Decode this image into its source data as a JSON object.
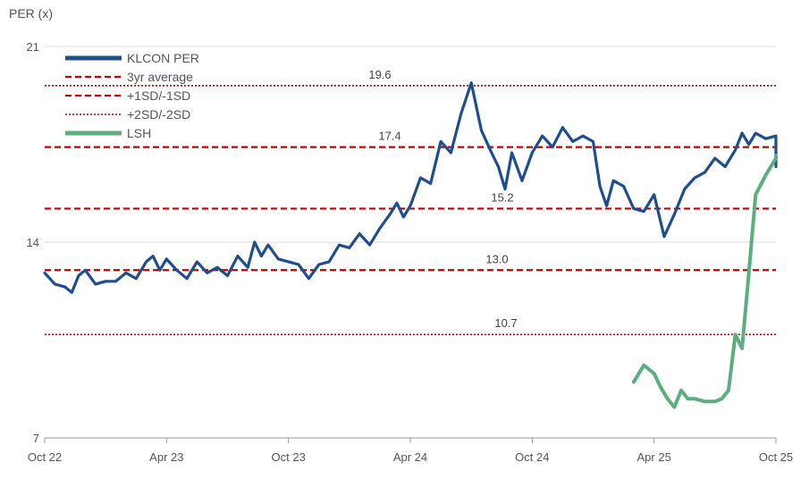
{
  "chart_data": {
    "type": "line",
    "ylabel": "PER (x)",
    "ylim": [
      7,
      21
    ],
    "yticks": [
      7,
      14,
      21
    ],
    "xlim": [
      "2022-10",
      "2025-10"
    ],
    "x_tick_labels": [
      "Oct 22",
      "Apr 23",
      "Oct 23",
      "Apr 24",
      "Oct 24",
      "Apr 25",
      "Oct 25"
    ],
    "grid": "horizontal",
    "legend_position": "top-left",
    "series": [
      {
        "name": "KLCON PER",
        "color": "#1f4e8c",
        "style": "solid",
        "points": [
          [
            "2022-10",
            12.9
          ],
          [
            "2022-10",
            12.5
          ],
          [
            "2022-11",
            12.4
          ],
          [
            "2022-11",
            12.2
          ],
          [
            "2022-11",
            12.8
          ],
          [
            "2022-12",
            13.0
          ],
          [
            "2022-12",
            12.5
          ],
          [
            "2023-01",
            12.6
          ],
          [
            "2023-01",
            12.6
          ],
          [
            "2023-02",
            12.9
          ],
          [
            "2023-02",
            12.7
          ],
          [
            "2023-03",
            13.3
          ],
          [
            "2023-03",
            13.5
          ],
          [
            "2023-03",
            13.0
          ],
          [
            "2023-04",
            13.4
          ],
          [
            "2023-04",
            13.0
          ],
          [
            "2023-05",
            12.7
          ],
          [
            "2023-05",
            13.3
          ],
          [
            "2023-06",
            12.9
          ],
          [
            "2023-06",
            13.1
          ],
          [
            "2023-07",
            12.8
          ],
          [
            "2023-07",
            13.5
          ],
          [
            "2023-08",
            13.1
          ],
          [
            "2023-08",
            14.0
          ],
          [
            "2023-08",
            13.5
          ],
          [
            "2023-09",
            13.9
          ],
          [
            "2023-09",
            13.4
          ],
          [
            "2023-10",
            13.3
          ],
          [
            "2023-10",
            13.2
          ],
          [
            "2023-11",
            12.7
          ],
          [
            "2023-11",
            13.2
          ],
          [
            "2023-12",
            13.3
          ],
          [
            "2023-12",
            13.9
          ],
          [
            "2024-01",
            13.8
          ],
          [
            "2024-01",
            14.3
          ],
          [
            "2024-02",
            13.9
          ],
          [
            "2024-02",
            14.5
          ],
          [
            "2024-03",
            15.0
          ],
          [
            "2024-03",
            15.4
          ],
          [
            "2024-03",
            14.9
          ],
          [
            "2024-04",
            15.3
          ],
          [
            "2024-04",
            16.3
          ],
          [
            "2024-05",
            16.1
          ],
          [
            "2024-05",
            17.6
          ],
          [
            "2024-06",
            17.2
          ],
          [
            "2024-06",
            18.6
          ],
          [
            "2024-07",
            19.7
          ],
          [
            "2024-07",
            18.0
          ],
          [
            "2024-08",
            17.2
          ],
          [
            "2024-08",
            16.7
          ],
          [
            "2024-08",
            15.9
          ],
          [
            "2024-09",
            17.2
          ],
          [
            "2024-09",
            16.2
          ],
          [
            "2024-10",
            17.2
          ],
          [
            "2024-10",
            17.8
          ],
          [
            "2024-11",
            17.4
          ],
          [
            "2024-11",
            18.1
          ],
          [
            "2024-12",
            17.6
          ],
          [
            "2024-12",
            17.8
          ],
          [
            "2025-01",
            17.6
          ],
          [
            "2025-01",
            16.0
          ],
          [
            "2025-01",
            15.3
          ],
          [
            "2025-02",
            16.2
          ],
          [
            "2025-02",
            16.0
          ],
          [
            "2025-03",
            15.2
          ],
          [
            "2025-03",
            15.1
          ],
          [
            "2025-04",
            15.7
          ],
          [
            "2025-04",
            14.2
          ],
          [
            "2025-05",
            15.0
          ],
          [
            "2025-05",
            15.9
          ],
          [
            "2025-06",
            16.3
          ],
          [
            "2025-06",
            16.5
          ],
          [
            "2025-07",
            17.0
          ],
          [
            "2025-07",
            16.7
          ],
          [
            "2025-08",
            17.3
          ],
          [
            "2025-08",
            17.9
          ],
          [
            "2025-08",
            17.5
          ],
          [
            "2025-09",
            17.9
          ],
          [
            "2025-09",
            17.7
          ],
          [
            "2025-10",
            17.8
          ],
          [
            "2025-10",
            17.4
          ],
          [
            "2025-10",
            16.8
          ],
          [
            "2025-10",
            16.7
          ]
        ]
      },
      {
        "name": "3yr average",
        "color": "#c00000",
        "style": "dashed",
        "value": 15.2,
        "label": "15.2"
      },
      {
        "name": "+1SD/-1SD",
        "color": "#c00000",
        "style": "dashed",
        "values": [
          17.4,
          13.0
        ],
        "labels": [
          "17.4",
          "13.0"
        ]
      },
      {
        "name": "+2SD/-2SD",
        "color": "#c00000",
        "style": "dotted",
        "values": [
          19.6,
          10.7
        ],
        "labels": [
          "19.6",
          "10.7"
        ]
      },
      {
        "name": "LSH",
        "color": "#5cae7e",
        "style": "solid",
        "points": [
          [
            "2025-03",
            9.0
          ],
          [
            "2025-03",
            9.6
          ],
          [
            "2025-04",
            9.3
          ],
          [
            "2025-04",
            8.8
          ],
          [
            "2025-04",
            8.4
          ],
          [
            "2025-05",
            8.1
          ],
          [
            "2025-05",
            8.7
          ],
          [
            "2025-05",
            8.4
          ],
          [
            "2025-06",
            8.4
          ],
          [
            "2025-06",
            8.3
          ],
          [
            "2025-07",
            8.3
          ],
          [
            "2025-07",
            8.4
          ],
          [
            "2025-07",
            8.7
          ],
          [
            "2025-08",
            10.7
          ],
          [
            "2025-08",
            10.2
          ],
          [
            "2025-08",
            12.9
          ],
          [
            "2025-09",
            15.7
          ],
          [
            "2025-09",
            16.4
          ],
          [
            "2025-10",
            17.0
          ],
          [
            "2025-10",
            17.1
          ]
        ]
      }
    ]
  }
}
